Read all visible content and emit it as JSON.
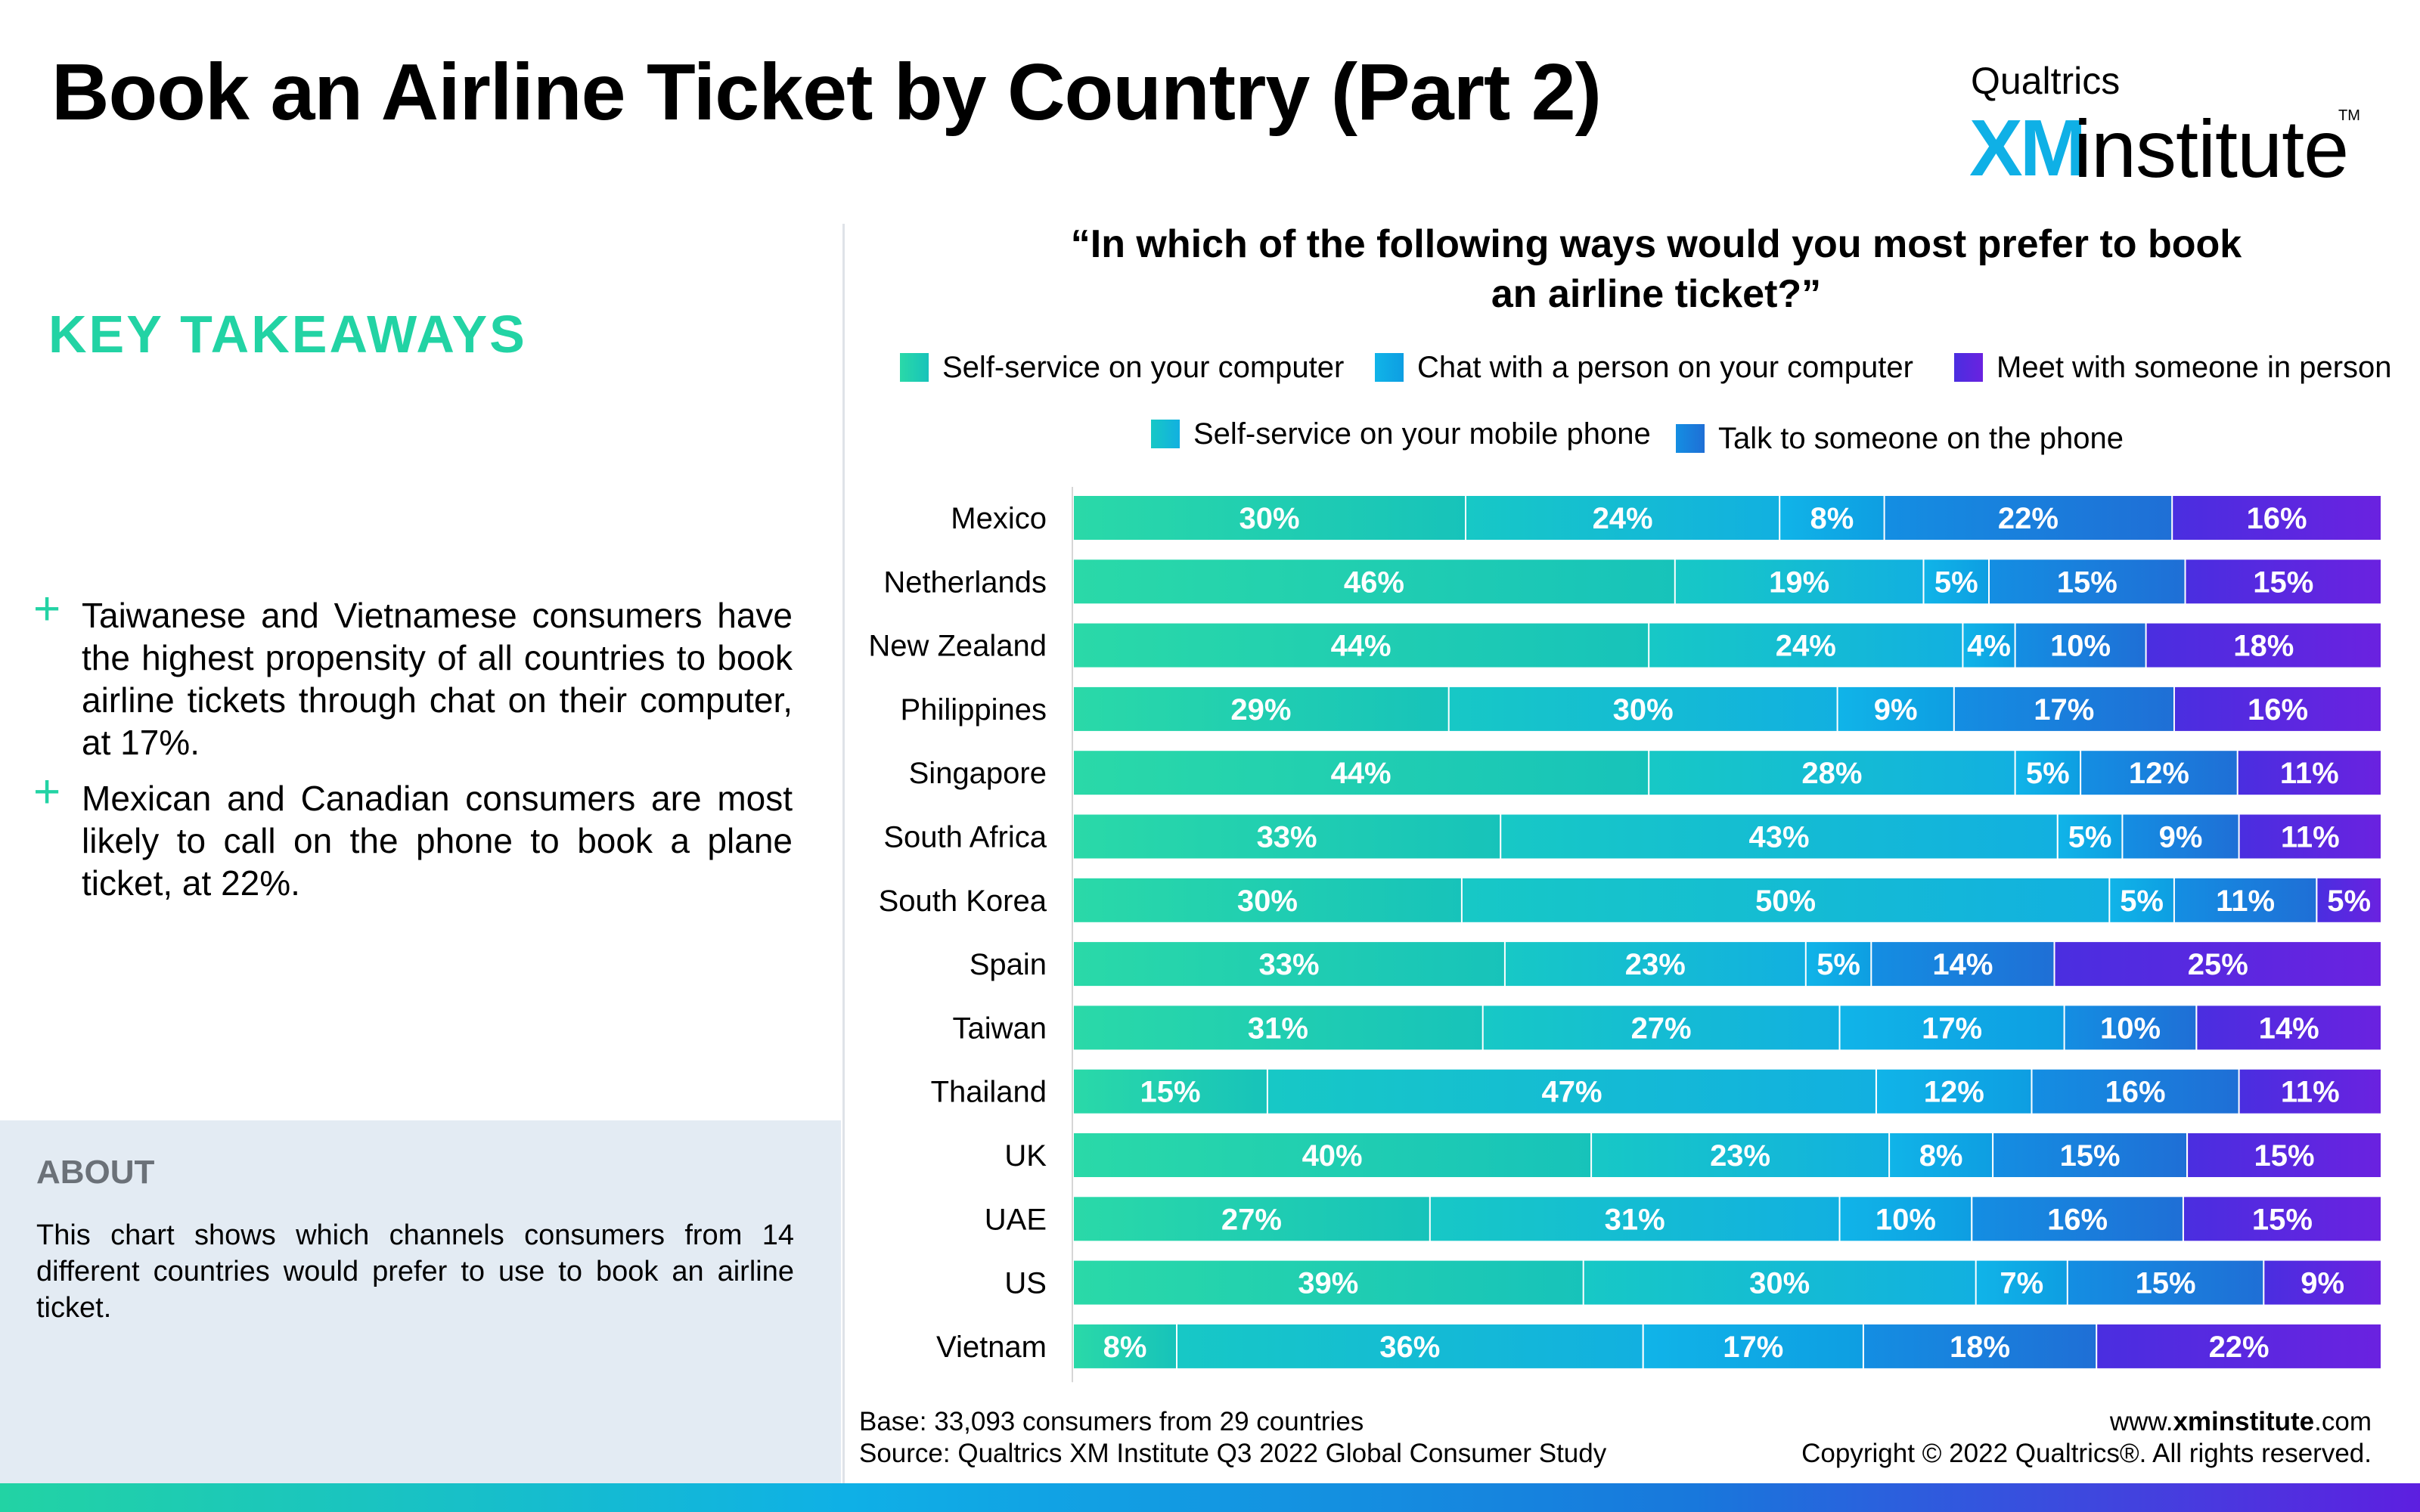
{
  "page": {
    "title": "Book an Airline Ticket by Country (Part 2)"
  },
  "logo": {
    "top_text": "Qualtrics",
    "xm_text": "XM",
    "institute_text": "institute",
    "tm_text": "TM"
  },
  "left_panel": {
    "heading": "KEY TAKEAWAYS",
    "takeaways": [
      "Taiwanese and Vietnamese consumers have the highest propensity of all countries to book airline tickets through chat on their computer, at 17%.",
      "Mexican and Canadian consumers are most likely to call on the phone to book a plane ticket, at 22%."
    ],
    "plus_icon": "+",
    "about_heading": "ABOUT",
    "about_text": "This chart shows which channels consumers from 14 different countries would prefer to use to book an airline ticket."
  },
  "footer": {
    "base": "Base: 33,093 consumers from 29 countries",
    "source": "Source: Qualtrics XM Institute Q3 2022 Global Consumer Study",
    "url_prefix": "www.",
    "url_bold": "xminstitute",
    "url_suffix": ".com",
    "copyright": "Copyright © 2022 Qualtrics®. All rights reserved."
  },
  "colors": {
    "accent_green": "#22d3a4",
    "accent_blue": "#0fb0e6"
  },
  "chart_data": {
    "type": "bar",
    "orientation": "horizontal",
    "stacked": true,
    "title": "“In which of the following ways would you most prefer to book an airline ticket?”",
    "legend_placement": "top",
    "value_format": "percent",
    "categories": [
      "Mexico",
      "Netherlands",
      "New Zealand",
      "Philippines",
      "Singapore",
      "South Africa",
      "South Korea",
      "Spain",
      "Taiwan",
      "Thailand",
      "UK",
      "UAE",
      "US",
      "Vietnam"
    ],
    "series": [
      {
        "name": "Self-service on your computer",
        "color_from": "#2ad9a8",
        "color_to": "#17c3ba",
        "values": [
          30,
          46,
          44,
          29,
          44,
          33,
          30,
          33,
          31,
          15,
          40,
          27,
          39,
          8
        ]
      },
      {
        "name": "Self-service on your mobile phone",
        "color_from": "#17c8c6",
        "color_to": "#12b0e0",
        "values": [
          24,
          19,
          24,
          30,
          28,
          43,
          50,
          23,
          27,
          47,
          23,
          31,
          30,
          36
        ]
      },
      {
        "name": "Chat with a person on your computer",
        "color_from": "#10b4e8",
        "color_to": "#0e9ee2",
        "values": [
          8,
          5,
          4,
          9,
          5,
          5,
          5,
          5,
          17,
          12,
          8,
          10,
          7,
          17
        ]
      },
      {
        "name": "Talk to someone on the phone",
        "color_from": "#148ee2",
        "color_to": "#1f6fd6",
        "values": [
          22,
          15,
          10,
          17,
          12,
          9,
          11,
          14,
          10,
          16,
          15,
          16,
          15,
          18
        ]
      },
      {
        "name": "Meet with someone in person",
        "color_from": "#4a2ee0",
        "color_to": "#6a22e0",
        "values": [
          16,
          15,
          18,
          16,
          11,
          11,
          5,
          25,
          14,
          11,
          15,
          15,
          9,
          22
        ]
      }
    ]
  }
}
